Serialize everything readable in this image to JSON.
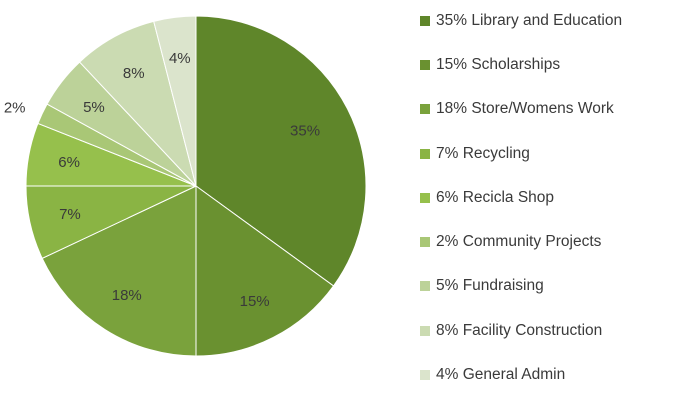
{
  "chart_data": {
    "type": "pie",
    "title": "",
    "legend_position": "right",
    "slices": [
      {
        "pct_label": "35%",
        "legend_label": "35%  Library and Education",
        "value": 35,
        "color": "#5f862a"
      },
      {
        "pct_label": "15%",
        "legend_label": "15%  Scholarships",
        "value": 15,
        "color": "#6a9130"
      },
      {
        "pct_label": "18%",
        "legend_label": "18%  Store/Womens Work",
        "value": 18,
        "color": "#7aa23c"
      },
      {
        "pct_label": "7%",
        "legend_label": "7%   Recycling",
        "value": 7,
        "color": "#8ab444"
      },
      {
        "pct_label": "6%",
        "legend_label": "6%  Recicla Shop",
        "value": 6,
        "color": "#96c04c"
      },
      {
        "pct_label": "2%",
        "legend_label": "2%  Community Projects",
        "value": 2,
        "color": "#a9c776"
      },
      {
        "pct_label": "5%",
        "legend_label": "5%  Fundraising",
        "value": 5,
        "color": "#bcd299"
      },
      {
        "pct_label": "8%",
        "legend_label": "8%  Facility Construction",
        "value": 8,
        "color": "#cbdbb2"
      },
      {
        "pct_label": "4%",
        "legend_label": "4%  General Admin",
        "value": 4,
        "color": "#dbe4cc"
      }
    ]
  }
}
